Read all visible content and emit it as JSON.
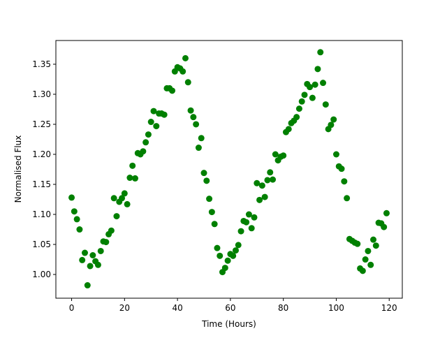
{
  "chart_data": {
    "type": "scatter",
    "xlabel": "Time (Hours)",
    "ylabel": "Normalised Flux",
    "color": "#008000",
    "x": [
      0,
      1,
      2,
      3,
      4,
      5,
      6,
      7,
      8,
      9,
      10,
      11,
      12,
      13,
      14,
      15,
      16,
      17,
      18,
      19,
      20,
      21,
      22,
      23,
      24,
      25,
      26,
      27,
      28,
      29,
      30,
      31,
      32,
      33,
      34,
      35,
      36,
      37,
      38,
      39,
      40,
      41,
      42,
      43,
      44,
      45,
      46,
      47,
      48,
      49,
      50,
      51,
      52,
      53,
      54,
      55,
      56,
      57,
      58,
      59,
      60,
      61,
      62,
      63,
      64,
      65,
      66,
      67,
      68,
      69,
      70,
      71,
      72,
      73,
      74,
      75,
      76,
      77,
      78,
      79,
      80,
      81,
      82,
      83,
      84,
      85,
      86,
      87,
      88,
      89,
      90,
      91,
      92,
      93,
      94,
      95,
      96,
      97,
      98,
      99,
      100,
      101,
      102,
      103,
      104,
      105,
      106,
      107,
      108,
      109,
      110,
      111,
      112,
      113,
      114,
      115,
      116,
      117,
      118,
      119
    ],
    "values": [
      1.128,
      1.105,
      1.092,
      1.075,
      1.024,
      1.036,
      0.982,
      1.014,
      1.032,
      1.022,
      1.016,
      1.039,
      1.055,
      1.054,
      1.067,
      1.073,
      1.127,
      1.097,
      1.121,
      1.127,
      1.135,
      1.117,
      1.161,
      1.181,
      1.16,
      1.202,
      1.2,
      1.205,
      1.22,
      1.233,
      1.254,
      1.272,
      1.247,
      1.268,
      1.268,
      1.266,
      1.31,
      1.31,
      1.306,
      1.338,
      1.345,
      1.343,
      1.338,
      1.36,
      1.32,
      1.273,
      1.262,
      1.25,
      1.211,
      1.227,
      1.169,
      1.156,
      1.126,
      1.104,
      1.084,
      1.044,
      1.031,
      1.004,
      1.011,
      1.023,
      1.034,
      1.031,
      1.04,
      1.049,
      1.072,
      1.089,
      1.087,
      1.1,
      1.077,
      1.095,
      1.152,
      1.124,
      1.148,
      1.129,
      1.157,
      1.17,
      1.158,
      1.2,
      1.19,
      1.196,
      1.198,
      1.237,
      1.242,
      1.252,
      1.256,
      1.262,
      1.276,
      1.288,
      1.299,
      1.317,
      1.312,
      1.294,
      1.316,
      1.342,
      1.37,
      1.319,
      1.283,
      1.242,
      1.249,
      1.258,
      1.2,
      1.18,
      1.176,
      1.155,
      1.127,
      1.059,
      1.056,
      1.053,
      1.051,
      1.01,
      1.006,
      1.025,
      1.039,
      1.016,
      1.058,
      1.048,
      1.086,
      1.085,
      1.079,
      1.102
    ],
    "xlim": [
      -5.95,
      124.95
    ],
    "ylim": [
      0.9605,
      1.3895
    ],
    "xticks": [
      0,
      20,
      40,
      60,
      80,
      100,
      120
    ],
    "yticks": [
      {
        "value": 1,
        "label": "1.00"
      },
      1.05,
      {
        "value": 1.1,
        "label": "1.10"
      },
      1.15,
      {
        "value": 1.2,
        "label": "1.20"
      },
      1.25,
      {
        "value": 1.3,
        "label": "1.30"
      },
      1.35
    ]
  }
}
